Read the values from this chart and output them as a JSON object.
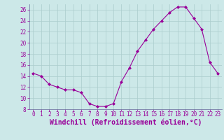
{
  "x": [
    0,
    1,
    2,
    3,
    4,
    5,
    6,
    7,
    8,
    9,
    10,
    11,
    12,
    13,
    14,
    15,
    16,
    17,
    18,
    19,
    20,
    21,
    22,
    23
  ],
  "y": [
    14.5,
    14.0,
    12.5,
    12.0,
    11.5,
    11.5,
    11.0,
    9.0,
    8.5,
    8.5,
    9.0,
    13.0,
    15.5,
    18.5,
    20.5,
    22.5,
    24.0,
    25.5,
    26.5,
    26.5,
    24.5,
    22.5,
    16.5,
    14.5
  ],
  "line_color": "#990099",
  "marker_color": "#990099",
  "bg_color": "#cce8e8",
  "grid_color": "#aacccc",
  "xlabel": "Windchill (Refroidissement éolien,°C)",
  "xlabel_color": "#990099",
  "ylim": [
    8,
    27
  ],
  "xlim": [
    -0.5,
    23.5
  ],
  "yticks": [
    8,
    10,
    12,
    14,
    16,
    18,
    20,
    22,
    24,
    26
  ],
  "xticks": [
    0,
    1,
    2,
    3,
    4,
    5,
    6,
    7,
    8,
    9,
    10,
    11,
    12,
    13,
    14,
    15,
    16,
    17,
    18,
    19,
    20,
    21,
    22,
    23
  ],
  "tick_color": "#990099",
  "tick_fontsize": 5.5,
  "xlabel_fontsize": 7.0,
  "spine_color": "#666699"
}
